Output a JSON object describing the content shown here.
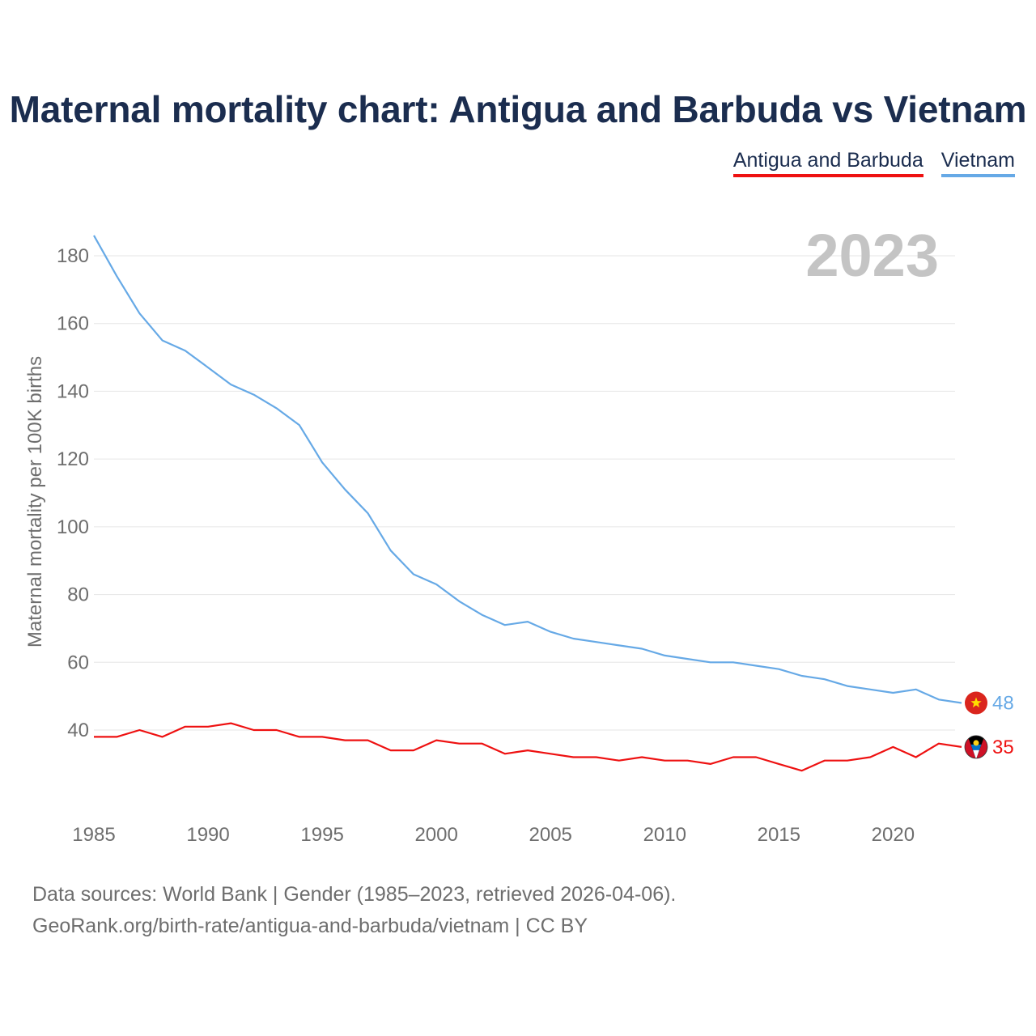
{
  "title": "Maternal mortality chart: Antigua and Barbuda vs Vietnam",
  "legend": [
    {
      "label": "Antigua and Barbuda",
      "color": "#ee1111"
    },
    {
      "label": "Vietnam",
      "color": "#66a9e6"
    }
  ],
  "year_watermark": "2023",
  "source": {
    "line1": "Data sources: World Bank | Gender (1985–2023, retrieved 2026-04-06).",
    "line2": "GeoRank.org/birth-rate/antigua-and-barbuda/vietnam | CC BY"
  },
  "chart_data": {
    "type": "line",
    "title": "Maternal mortality chart: Antigua and Barbuda vs Vietnam",
    "xlabel": "",
    "ylabel": "Maternal mortality per 100K births",
    "xlim": [
      1985,
      2023
    ],
    "ylim": [
      20,
      190
    ],
    "xticks": [
      1985,
      1990,
      1995,
      2000,
      2005,
      2010,
      2015,
      2020
    ],
    "yticks": [
      40,
      60,
      80,
      100,
      120,
      140,
      160,
      180
    ],
    "grid": true,
    "legend_position": "top-right",
    "x": [
      1985,
      1986,
      1987,
      1988,
      1989,
      1990,
      1991,
      1992,
      1993,
      1994,
      1995,
      1996,
      1997,
      1998,
      1999,
      2000,
      2001,
      2002,
      2003,
      2004,
      2005,
      2006,
      2007,
      2008,
      2009,
      2010,
      2011,
      2012,
      2013,
      2014,
      2015,
      2016,
      2017,
      2018,
      2019,
      2020,
      2021,
      2022,
      2023
    ],
    "series": [
      {
        "name": "Vietnam",
        "color": "#66a9e6",
        "end_label": "48",
        "values": [
          186,
          174,
          163,
          155,
          152,
          147,
          142,
          139,
          135,
          130,
          119,
          111,
          104,
          93,
          86,
          83,
          78,
          74,
          71,
          72,
          69,
          67,
          66,
          65,
          64,
          62,
          61,
          60,
          60,
          59,
          58,
          56,
          55,
          53,
          52,
          51,
          52,
          49,
          48
        ]
      },
      {
        "name": "Antigua and Barbuda",
        "color": "#ee1111",
        "end_label": "35",
        "values": [
          38,
          38,
          40,
          38,
          41,
          41,
          42,
          40,
          40,
          38,
          38,
          37,
          37,
          34,
          34,
          37,
          36,
          36,
          33,
          34,
          33,
          32,
          32,
          31,
          32,
          31,
          31,
          30,
          32,
          32,
          30,
          28,
          31,
          31,
          32,
          35,
          32,
          36,
          35
        ]
      }
    ]
  }
}
